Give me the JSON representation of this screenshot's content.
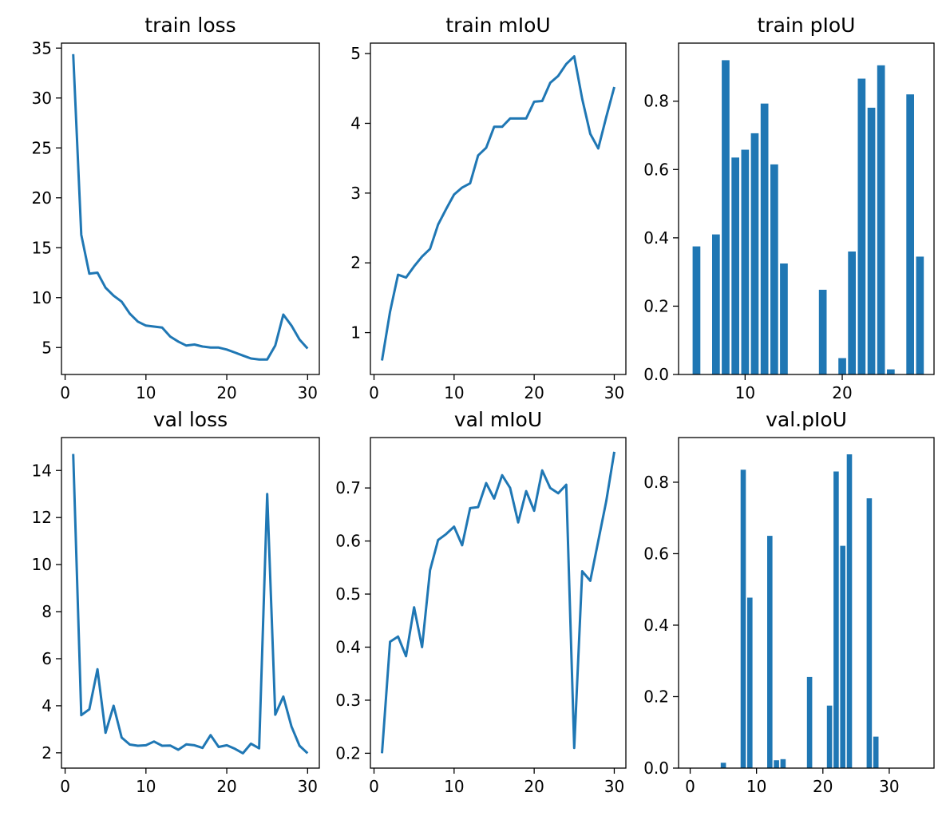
{
  "colors": {
    "series": "#1f77b4",
    "axes": "#000000",
    "background": "#ffffff"
  },
  "chart_data": [
    {
      "id": "train-loss",
      "type": "line",
      "title": "train loss",
      "xlabel": "",
      "ylabel": "",
      "xlim": [
        -0.45,
        31.45
      ],
      "ylim": [
        2.3,
        35.5
      ],
      "xticks": [
        0,
        10,
        20,
        30
      ],
      "yticks": [
        5,
        10,
        15,
        20,
        25,
        30,
        35
      ],
      "grid": false,
      "x": [
        1,
        2,
        3,
        4,
        5,
        6,
        7,
        8,
        9,
        10,
        11,
        12,
        13,
        14,
        15,
        16,
        17,
        18,
        19,
        20,
        21,
        22,
        23,
        24,
        25,
        26,
        27,
        28,
        29,
        30
      ],
      "values": [
        34.4,
        16.3,
        12.4,
        12.5,
        11.0,
        10.2,
        9.6,
        8.4,
        7.6,
        7.2,
        7.1,
        7.0,
        6.1,
        5.6,
        5.2,
        5.3,
        5.1,
        5.0,
        5.0,
        4.8,
        4.5,
        4.2,
        3.9,
        3.8,
        3.8,
        5.2,
        8.3,
        7.2,
        5.8,
        4.9
      ]
    },
    {
      "id": "train-miou",
      "type": "line",
      "title": "train mIoU",
      "xlabel": "",
      "ylabel": "",
      "xlim": [
        -0.45,
        31.45
      ],
      "ylim": [
        0.4,
        5.15
      ],
      "xticks": [
        0,
        10,
        20,
        30
      ],
      "yticks": [
        1,
        2,
        3,
        4,
        5
      ],
      "grid": false,
      "x": [
        1,
        2,
        3,
        4,
        5,
        6,
        7,
        8,
        9,
        10,
        11,
        12,
        13,
        14,
        15,
        16,
        17,
        18,
        19,
        20,
        21,
        22,
        23,
        24,
        25,
        26,
        27,
        28,
        29,
        30
      ],
      "values": [
        0.6,
        1.3,
        1.83,
        1.79,
        1.95,
        2.09,
        2.2,
        2.55,
        2.77,
        2.98,
        3.08,
        3.14,
        3.54,
        3.65,
        3.95,
        3.95,
        4.07,
        4.07,
        4.07,
        4.31,
        4.32,
        4.58,
        4.68,
        4.85,
        4.96,
        4.35,
        3.85,
        3.64,
        4.09,
        4.52
      ]
    },
    {
      "id": "train-piou",
      "type": "bar",
      "title": "train pIoU",
      "xlabel": "",
      "ylabel": "",
      "xlim": [
        3.15,
        29.45
      ],
      "ylim": [
        0.0,
        0.97
      ],
      "xticks": [
        10,
        20
      ],
      "yticks": [
        0.0,
        0.2,
        0.4,
        0.6,
        0.8
      ],
      "ytick_labels": [
        "0.0",
        "0.2",
        "0.4",
        "0.6",
        "0.8"
      ],
      "grid": false,
      "categories": [
        5,
        7,
        8,
        9,
        10,
        11,
        12,
        13,
        14,
        18,
        20,
        21,
        22,
        23,
        24,
        25,
        27,
        28
      ],
      "values": [
        0.375,
        0.41,
        0.92,
        0.635,
        0.658,
        0.706,
        0.793,
        0.615,
        0.325,
        0.248,
        0.048,
        0.36,
        0.866,
        0.781,
        0.905,
        0.015,
        0.82,
        0.345
      ]
    },
    {
      "id": "val-loss",
      "type": "line",
      "title": "val loss",
      "xlabel": "",
      "ylabel": "",
      "xlim": [
        -0.45,
        31.45
      ],
      "ylim": [
        1.35,
        15.4
      ],
      "xticks": [
        0,
        10,
        20,
        30
      ],
      "yticks": [
        2,
        4,
        6,
        8,
        10,
        12,
        14
      ],
      "grid": false,
      "x": [
        1,
        2,
        3,
        4,
        5,
        6,
        7,
        8,
        9,
        10,
        11,
        12,
        13,
        14,
        15,
        16,
        17,
        18,
        19,
        20,
        21,
        22,
        23,
        24,
        25,
        26,
        27,
        28,
        29,
        30
      ],
      "values": [
        14.7,
        3.6,
        3.85,
        5.55,
        2.85,
        4.0,
        2.65,
        2.35,
        2.3,
        2.32,
        2.48,
        2.3,
        2.31,
        2.13,
        2.36,
        2.32,
        2.21,
        2.75,
        2.25,
        2.32,
        2.17,
        1.98,
        2.39,
        2.19,
        13.0,
        3.62,
        4.39,
        3.12,
        2.3,
        1.98
      ]
    },
    {
      "id": "val-miou",
      "type": "line",
      "title": "val mIoU",
      "xlabel": "",
      "ylabel": "",
      "xlim": [
        -0.45,
        31.45
      ],
      "ylim": [
        0.172,
        0.795
      ],
      "xticks": [
        0,
        10,
        20,
        30
      ],
      "yticks": [
        0.2,
        0.3,
        0.4,
        0.5,
        0.6,
        0.7
      ],
      "ytick_labels": [
        "0.2",
        "0.3",
        "0.4",
        "0.5",
        "0.6",
        "0.7"
      ],
      "grid": false,
      "x": [
        1,
        2,
        3,
        4,
        5,
        6,
        7,
        8,
        9,
        10,
        11,
        12,
        13,
        14,
        15,
        16,
        17,
        18,
        19,
        20,
        21,
        22,
        23,
        24,
        25,
        26,
        27,
        28,
        29,
        30
      ],
      "values": [
        0.2,
        0.41,
        0.42,
        0.383,
        0.475,
        0.4,
        0.545,
        0.602,
        0.613,
        0.627,
        0.592,
        0.662,
        0.664,
        0.709,
        0.68,
        0.724,
        0.7,
        0.635,
        0.694,
        0.657,
        0.733,
        0.7,
        0.69,
        0.706,
        0.21,
        0.543,
        0.525,
        0.6,
        0.675,
        0.768
      ]
    },
    {
      "id": "val-piou",
      "type": "bar",
      "title": "val.pIoU",
      "xlabel": "",
      "ylabel": "",
      "xlim": [
        -1.75,
        36.75
      ],
      "ylim": [
        0.0,
        0.925
      ],
      "xticks": [
        0,
        10,
        20,
        30
      ],
      "yticks": [
        0.0,
        0.2,
        0.4,
        0.6,
        0.8
      ],
      "ytick_labels": [
        "0.0",
        "0.2",
        "0.4",
        "0.6",
        "0.8"
      ],
      "grid": false,
      "categories": [
        5,
        8,
        9,
        12,
        13,
        14,
        18,
        21,
        22,
        23,
        24,
        27,
        28
      ],
      "values": [
        0.015,
        0.835,
        0.477,
        0.65,
        0.022,
        0.025,
        0.255,
        0.175,
        0.83,
        0.622,
        0.878,
        0.755,
        0.088
      ]
    }
  ]
}
